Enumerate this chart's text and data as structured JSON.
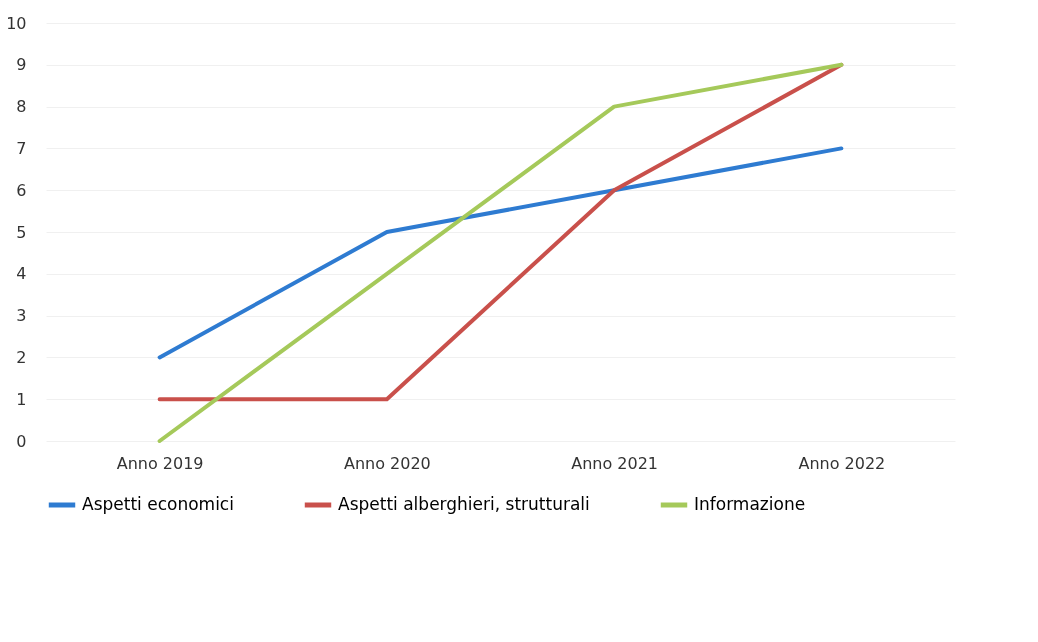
{
  "chart_data": {
    "type": "line",
    "categories": [
      "Anno 2019",
      "Anno 2020",
      "Anno 2021",
      "Anno 2022"
    ],
    "series": [
      {
        "name": "Aspetti economici",
        "color": "#2e7bd1",
        "values": [
          2,
          5,
          6,
          7
        ]
      },
      {
        "name": "Aspetti alberghieri, strutturali",
        "color": "#c9504b",
        "values": [
          1,
          1,
          6,
          9
        ]
      },
      {
        "name": "Informazione",
        "color": "#a5c95a",
        "values": [
          0,
          4,
          8,
          9
        ]
      }
    ],
    "ylim": [
      0,
      10
    ],
    "yticks": [
      0,
      1,
      2,
      3,
      4,
      5,
      6,
      7,
      8,
      9,
      10
    ],
    "grid": "y",
    "legend": "bottom",
    "marker": "none",
    "line_style": "solid"
  }
}
